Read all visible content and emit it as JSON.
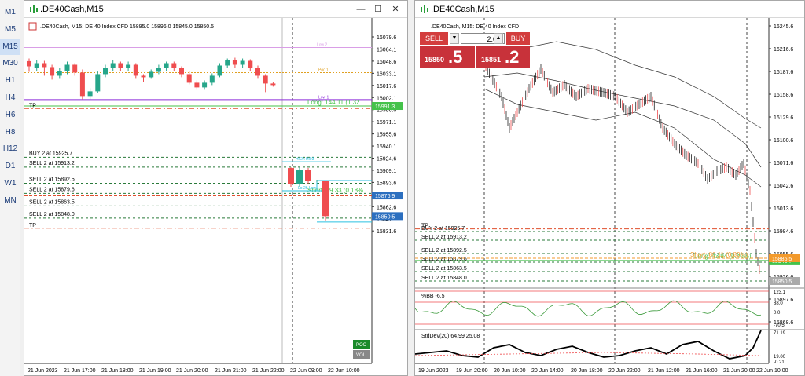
{
  "timeframes": [
    "M1",
    "M5",
    "M15",
    "M30",
    "H1",
    "H4",
    "H6",
    "H8",
    "H12",
    "D1",
    "W1",
    "MN"
  ],
  "active_timeframe": "M15",
  "left_window": {
    "title": ".DE40Cash,M15",
    "info": ".DE40Cash, M15:  DE 40 Index CFD   15895.0  15896.0  15845.0  15850.5",
    "price_labels": [
      "16079.6",
      "16064.1",
      "16048.6",
      "16033.1",
      "16017.6",
      "16002.1",
      "15986.6",
      "15971.1",
      "15955.6",
      "15940.1",
      "15924.6",
      "15909.1",
      "15893.6",
      "15878.1",
      "15862.6",
      "15847.1",
      "15831.6"
    ],
    "highlight_prices": {
      "long": "15991.3",
      "short": "15876.9",
      "last": "15850.5"
    },
    "time_labels": [
      "21 Jun 2023",
      "21 Jun 17:00",
      "21 Jun 18:00",
      "21 Jun 19:00",
      "21 Jun 20:00",
      "21 Jun 21:00",
      "21 Jun 22:00",
      "22 Jun 09:00",
      "22 Jun 10:00"
    ],
    "orders": [
      "BUY 2 at 15925.7",
      "SELL 2 at 15913.2",
      "SELL 2 at 15892.5",
      "SELL 2 at 15879.6",
      "SELL 2 at 15863.5",
      "SELL 2 at 15848.0"
    ],
    "tp_label": "TP",
    "long_label": "Long: 144.11  (1.32",
    "short_label": "Short: 19.33  (0.18%",
    "level_labels": {
      "low2": "Low 2",
      "poc": "Poc 1",
      "low1": "Low 1",
      "top": "Hi 2h Hi03",
      "bottom": "Lo 2h Low"
    },
    "badges": {
      "poc": "POC",
      "vol": "VOL"
    },
    "candles": [
      [
        16048.6,
        16042.0,
        16052.0,
        16035.0
      ],
      [
        16040.0,
        16046.0,
        16050.0,
        16036.0
      ],
      [
        16046.0,
        16041.0,
        16049.0,
        16030.0
      ],
      [
        16041.0,
        16030.0,
        16044.0,
        16025.0
      ],
      [
        16030.0,
        16036.0,
        16040.0,
        16026.0
      ],
      [
        16036.0,
        16044.0,
        16048.0,
        16032.0
      ],
      [
        16044.0,
        16034.0,
        16046.0,
        16030.0
      ],
      [
        16034.0,
        16004.0,
        16038.0,
        16000.0
      ],
      [
        16004.0,
        16010.0,
        16014.0,
        16000.0
      ],
      [
        16010.0,
        16032.0,
        16036.0,
        16008.0
      ],
      [
        16032.0,
        16040.0,
        16044.0,
        16028.0
      ],
      [
        16040.0,
        16046.0,
        16050.0,
        16036.0
      ],
      [
        16046.0,
        16040.0,
        16048.0,
        16036.0
      ],
      [
        16040.0,
        16044.0,
        16048.0,
        16036.0
      ],
      [
        16044.0,
        16030.0,
        16046.0,
        16026.0
      ],
      [
        16030.0,
        16028.0,
        16032.0,
        16022.0
      ],
      [
        16028.0,
        16035.0,
        16038.0,
        16026.0
      ],
      [
        16035.0,
        16040.0,
        16044.0,
        16032.0
      ],
      [
        16040.0,
        16046.0,
        16048.0,
        16036.0
      ],
      [
        16046.0,
        16040.0,
        16048.0,
        16036.0
      ],
      [
        16040.0,
        16032.0,
        16042.0,
        16028.0
      ],
      [
        16032.0,
        16021.0,
        16036.0,
        16019.0
      ],
      [
        16021.0,
        16015.0,
        16024.0,
        16012.0
      ],
      [
        16015.0,
        16021.0,
        16024.0,
        16012.0
      ],
      [
        16021.0,
        16030.0,
        16033.0,
        16018.0
      ],
      [
        16030.0,
        16043.0,
        16046.0,
        16028.0
      ],
      [
        16043.0,
        16050.0,
        16052.0,
        16040.0
      ],
      [
        16050.0,
        16044.0,
        16053.0,
        16040.0
      ],
      [
        16044.0,
        16049.0,
        16052.0,
        16040.0
      ],
      [
        16049.0,
        16040.0,
        16051.0,
        16036.0
      ],
      [
        16040.0,
        16030.0,
        16043.0,
        16026.0
      ],
      [
        16030.0,
        16020.0,
        16032.0,
        16009.0
      ],
      [
        16020.0,
        16018.0,
        16022.0,
        16016.0
      ]
    ],
    "candles2": [
      [
        15912.0,
        15892.0,
        15913.0,
        15888.0
      ],
      [
        15892.0,
        15910.0,
        15913.0,
        15888.0
      ],
      [
        15910.0,
        15895.0,
        15912.0,
        15892.0
      ],
      [
        15895.0,
        15896.0,
        15897.0,
        15894.0
      ],
      [
        15895.0,
        15850.5,
        15896.0,
        15845.0
      ]
    ]
  },
  "right_window": {
    "title": ".DE40Cash,M15",
    "info": ".DE40Cash, M15:  DE 40 Index CFD",
    "sell_label": "SELL",
    "buy_label": "BUY",
    "volume": "2.00",
    "sell_price_small": "15850",
    "sell_price_big": ".5",
    "buy_price_small": "15851",
    "buy_price_big": ".2",
    "price_labels": [
      "16245.6",
      "16216.6",
      "16187.6",
      "16158.6",
      "16129.6",
      "16100.6",
      "16071.6",
      "16042.6",
      "16013.6",
      "15984.6",
      "15955.6",
      "15926.6",
      "15897.6",
      "15868.6"
    ],
    "highlight_prices": {
      "long": "15946.7",
      "short": "15886.5",
      "last": "15850.5"
    },
    "orders": [
      "BUY 2 at 15925.7",
      "SELL 2 at 15913.2",
      "SELL 2 at 15892.5",
      "SELL 2 at 15879.6",
      "SELL 2 at 15863.5",
      "SELL 2 at 15848.0"
    ],
    "tp_label": "TP",
    "long_label": "Long: 43.94  (0.40%)",
    "short_label": "Short: 86.11  (0.80%)",
    "bb_label": "%BB -6.5",
    "bb_levels": [
      "123.1",
      "88.0",
      "0.0",
      "-70.5"
    ],
    "std_label": "StdDev(20) 64.99 25.08",
    "std_levels": [
      "71.19",
      "19.00",
      "-0.21"
    ],
    "time_labels": [
      "19 Jun 2023",
      "19 Jun 20:00",
      "20 Jun 10:00",
      "20 Jun 14:00",
      "20 Jun 18:00",
      "20 Jun 22:00",
      "21 Jun 12:00",
      "21 Jun 16:00",
      "21 Jun 20:00",
      "22 Jun 10:00"
    ]
  },
  "colors": {
    "bull": "#26a68a",
    "bear": "#ef4d4f",
    "long_line": "#44c24a",
    "short_line": "#f39a2b",
    "order_line": "#2a7a3a",
    "tp_line": "#e0502f",
    "low2": "#d99ee6",
    "low1": "#8d2fd9",
    "poc": "#e0a020",
    "cyan": "#2ac0e0",
    "last_bg": "#2c6fbf"
  }
}
